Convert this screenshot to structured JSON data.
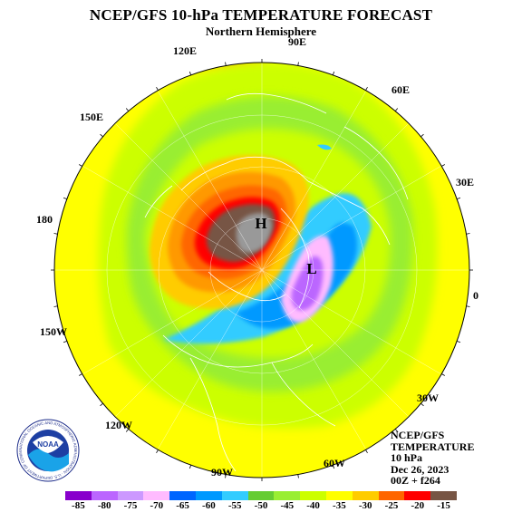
{
  "header": {
    "title": "NCEP/GFS 10-hPa TEMPERATURE FORECAST",
    "subtitle": "Northern Hemisphere"
  },
  "longitude_labels": {
    "e90": "90E",
    "e120": "120E",
    "e60": "60E",
    "e150": "150E",
    "e30": "30E",
    "d180": "180",
    "zero": "0",
    "w150": "150W",
    "w30": "30W",
    "w120": "120W",
    "w60": "60W",
    "w90": "90W"
  },
  "map": {
    "high_label": "H",
    "low_label": "L",
    "colors": {
      "yellow": "#ffff00",
      "yellow_green": "#ccff00",
      "light_green": "#99ee33",
      "green": "#66cc33",
      "orange_light": "#ffcc00",
      "orange": "#ff9900",
      "red_orange": "#ff6600",
      "red": "#ff0000",
      "brown": "#775544",
      "gray": "#999999",
      "cyan": "#33ccff",
      "blue": "#0099ff",
      "pink": "#ffbbff",
      "violet": "#bb66ff"
    }
  },
  "info": {
    "line1": "NCEP/GFS",
    "line2": "TEMPERATURE",
    "line3": "10 hPa",
    "line4": "Dec 26, 2023",
    "line5": "00Z + f264"
  },
  "colorbar": {
    "ticks": [
      "-85",
      "-80",
      "-75",
      "-70",
      "-65",
      "-60",
      "-55",
      "-50",
      "-45",
      "-40",
      "-35",
      "-30",
      "-25",
      "-20",
      "-15"
    ],
    "colors": [
      "#8800cc",
      "#bb66ff",
      "#cc99ff",
      "#ffbbff",
      "#0066ff",
      "#0099ff",
      "#33ccff",
      "#66cc33",
      "#99ee33",
      "#ccff00",
      "#ffff00",
      "#ffcc00",
      "#ff6600",
      "#ff0000",
      "#775544"
    ]
  },
  "logo": {
    "name": "NOAA",
    "ring_text": "NATIONAL OCEANIC AND ATMOSPHERIC ADMINISTRATION · U.S. DEPARTMENT OF COMMERCE"
  }
}
